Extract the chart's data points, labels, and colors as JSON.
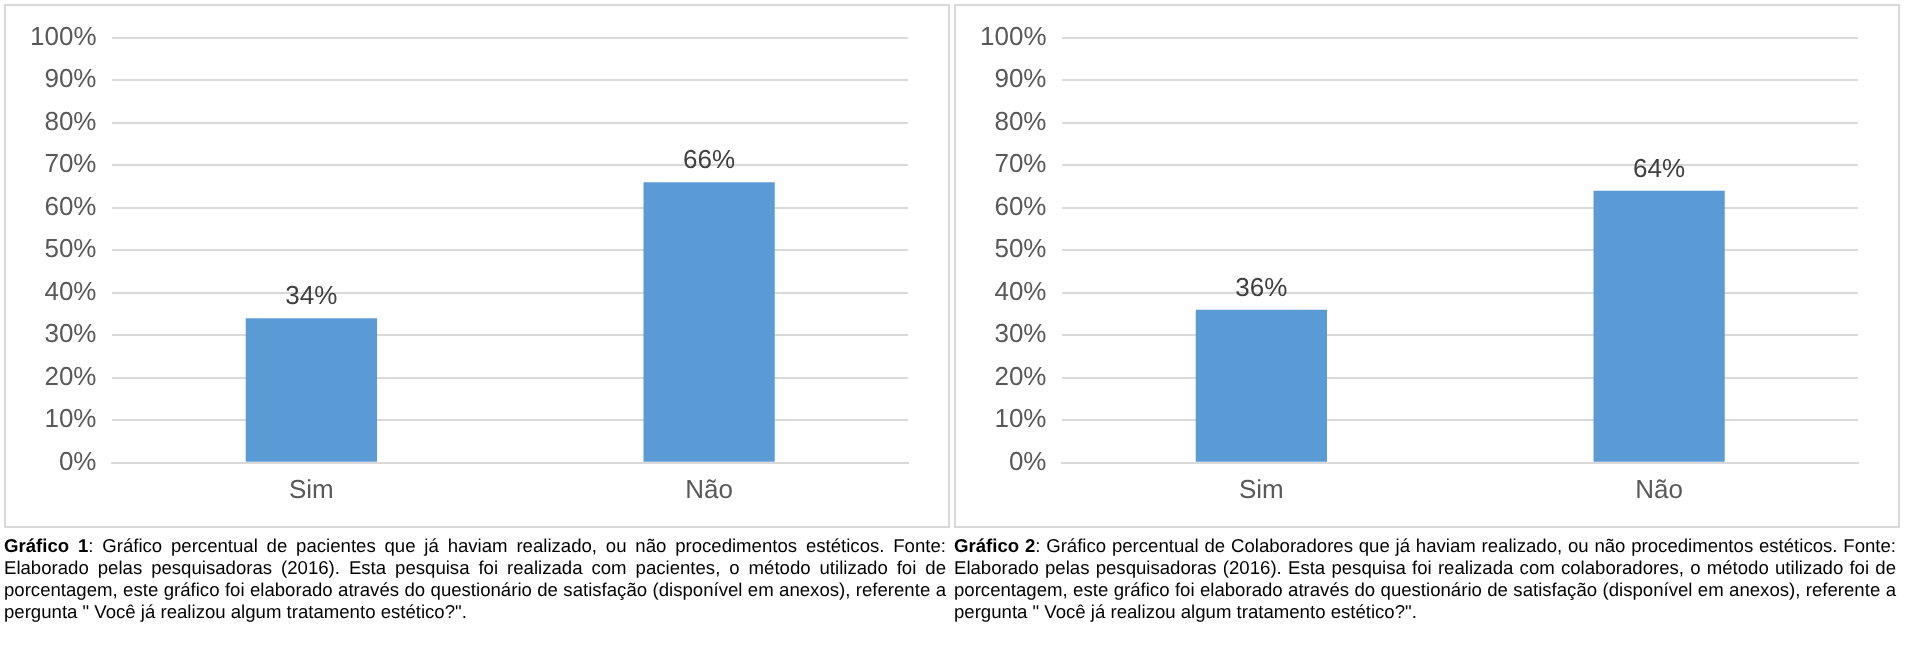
{
  "chart_data": [
    {
      "type": "bar",
      "categories": [
        "Sim",
        "Não"
      ],
      "values": [
        34,
        66
      ],
      "color": "#5b9bd5",
      "value_labels": [
        "34%",
        "66%"
      ],
      "ylim": [
        0,
        100
      ],
      "yticks": [
        {
          "value": 0,
          "label": "0%"
        },
        {
          "value": 10,
          "label": "10%"
        },
        {
          "value": 20,
          "label": "20%"
        },
        {
          "value": 30,
          "label": "30%"
        },
        {
          "value": 40,
          "label": "40%"
        },
        {
          "value": 50,
          "label": "50%"
        },
        {
          "value": 60,
          "label": "60%"
        },
        {
          "value": 70,
          "label": "70%"
        },
        {
          "value": 80,
          "label": "80%"
        },
        {
          "value": 90,
          "label": "90%"
        },
        {
          "value": 100,
          "label": "100%"
        }
      ],
      "grid": "y",
      "legend": false,
      "annotations": [
        "Gráfico 1",
        ": Gráfico percentual de pacientes que já haviam realizado, ou não procedimentos estéticos. Fonte: Elaborado pelas pesquisadoras (2016). Esta pesquisa foi realizada com pacientes, o método utilizado foi de porcentagem, este gráfico foi elaborado através do questionário de satisfação (disponível em anexos), referente a pergunta \" Você já realizou algum tratamento estético?\"."
      ]
    },
    {
      "type": "bar",
      "categories": [
        "Sim",
        "Não"
      ],
      "values": [
        36,
        64
      ],
      "color": "#5b9bd5",
      "value_labels": [
        "36%",
        "64%"
      ],
      "ylim": [
        0,
        100
      ],
      "yticks": [
        {
          "value": 0,
          "label": "0%"
        },
        {
          "value": 10,
          "label": "10%"
        },
        {
          "value": 20,
          "label": "20%"
        },
        {
          "value": 30,
          "label": "30%"
        },
        {
          "value": 40,
          "label": "40%"
        },
        {
          "value": 50,
          "label": "50%"
        },
        {
          "value": 60,
          "label": "60%"
        },
        {
          "value": 70,
          "label": "70%"
        },
        {
          "value": 80,
          "label": "80%"
        },
        {
          "value": 90,
          "label": "90%"
        },
        {
          "value": 100,
          "label": "100%"
        }
      ],
      "grid": "y",
      "legend": false,
      "annotations": [
        "Gráfico 2",
        ": Gráfico percentual de Colaboradores que já haviam realizado, ou não procedimentos estéticos. Fonte: Elaborado pelas pesquisadoras (2016). Esta pesquisa foi realizada com colaboradores, o método utilizado foi de porcentagem, este gráfico foi elaborado através do questionário de satisfação (disponível em anexos), referente a pergunta \" Você já realizou algum tratamento estético?\"."
      ]
    }
  ]
}
